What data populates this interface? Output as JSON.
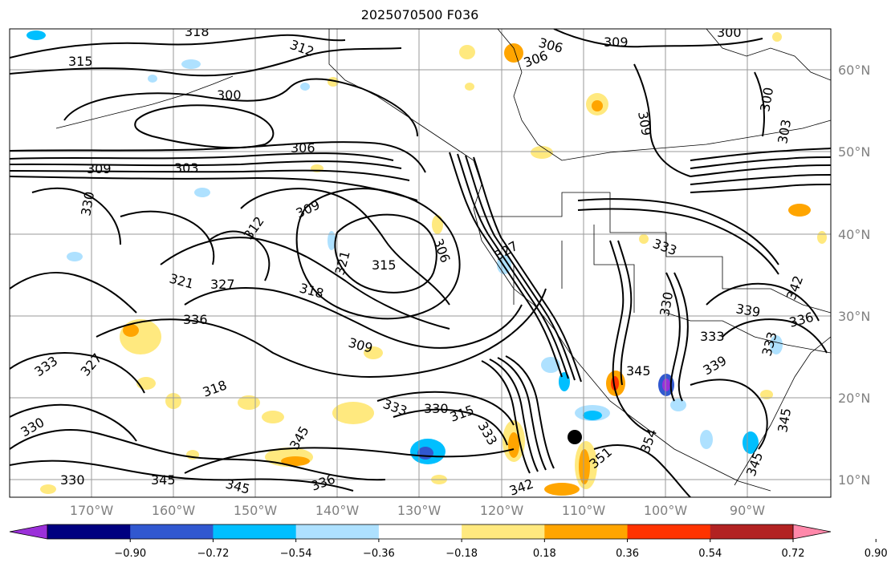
{
  "title": "2025070500 F036",
  "latitudes": [
    "60°N",
    "50°N",
    "40°N",
    "30°N",
    "20°N",
    "10°N"
  ],
  "longitudes": [
    "170°W",
    "160°W",
    "150°W",
    "140°W",
    "130°W",
    "120°W",
    "110°W",
    "100°W",
    "90°W"
  ],
  "contour_labels": [
    "318",
    "312",
    "315",
    "306",
    "309",
    "306",
    "300",
    "300",
    "309",
    "300",
    "303",
    "306",
    "303",
    "309",
    "330",
    "309",
    "312",
    "306",
    "315",
    "321",
    "327",
    "321",
    "318",
    "327",
    "309",
    "336",
    "333",
    "327",
    "318",
    "333",
    "330",
    "315",
    "333",
    "330",
    "330",
    "345",
    "345",
    "336",
    "345",
    "342",
    "354",
    "345",
    "351",
    "330",
    "333",
    "339",
    "339",
    "336",
    "333",
    "342",
    "345",
    "345",
    "333"
  ],
  "colorbar": {
    "ticks": [
      "−0.90",
      "−0.72",
      "−0.54",
      "−0.36",
      "−0.18",
      "0.18",
      "0.36",
      "0.54",
      "0.72",
      "0.90"
    ],
    "colors": [
      "#9b30d9",
      "#000080",
      "#3158d0",
      "#00bfff",
      "#aee1ff",
      "#ffffff",
      "#ffe97f",
      "#ffa500",
      "#ff3300",
      "#b22222",
      "#ff88aa"
    ]
  },
  "marker": "storm-center-marker"
}
